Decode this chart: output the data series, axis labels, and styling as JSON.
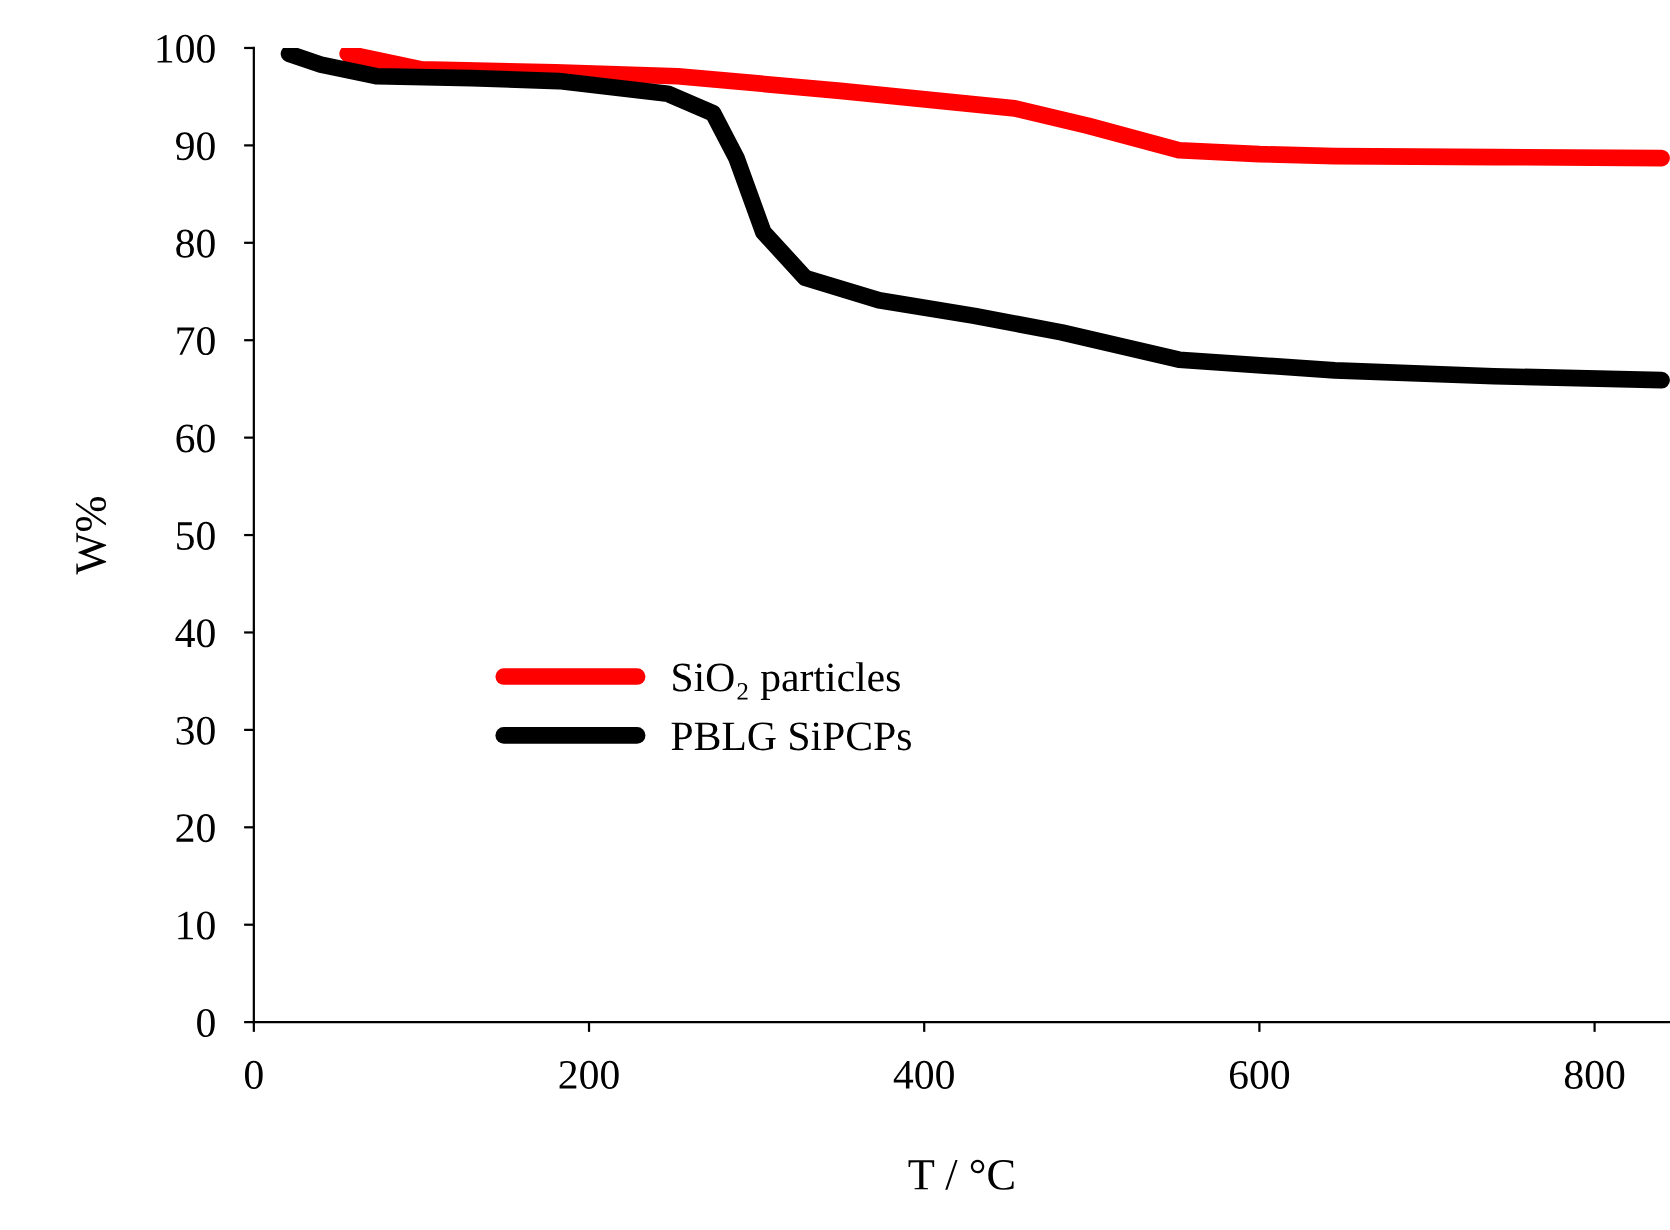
{
  "chart_data": {
    "type": "line",
    "xlabel": "T / °C",
    "ylabel": "W%",
    "xlim": [
      0,
      845
    ],
    "ylim": [
      0,
      100
    ],
    "xticks": [
      0,
      200,
      400,
      600,
      800
    ],
    "yticks": [
      0,
      10,
      20,
      30,
      40,
      50,
      60,
      70,
      80,
      90,
      100
    ],
    "grid": false,
    "legend": "center left",
    "marker": "none",
    "line_style": "solid",
    "series": [
      {
        "name": "SiO₂ particles",
        "color": "#ff0000",
        "x": [
          56,
          100,
          180,
          253,
          350,
          454,
          498,
          552,
          600,
          645,
          740,
          840
        ],
        "values": [
          99.4,
          97.8,
          97.5,
          97.1,
          95.6,
          93.8,
          92.0,
          89.5,
          89.1,
          88.9,
          88.8,
          88.7
        ]
      },
      {
        "name": "PBLG SiPCPs",
        "color": "#000000",
        "x": [
          21,
          40,
          73,
          130,
          182,
          247,
          274,
          288,
          304,
          329,
          373,
          430,
          482,
          552,
          645,
          740,
          840
        ],
        "values": [
          99.4,
          98.3,
          97.1,
          96.9,
          96.6,
          95.3,
          93.3,
          88.7,
          81.1,
          76.4,
          74.1,
          72.5,
          70.8,
          68.0,
          66.9,
          66.3,
          65.9
        ]
      }
    ]
  }
}
